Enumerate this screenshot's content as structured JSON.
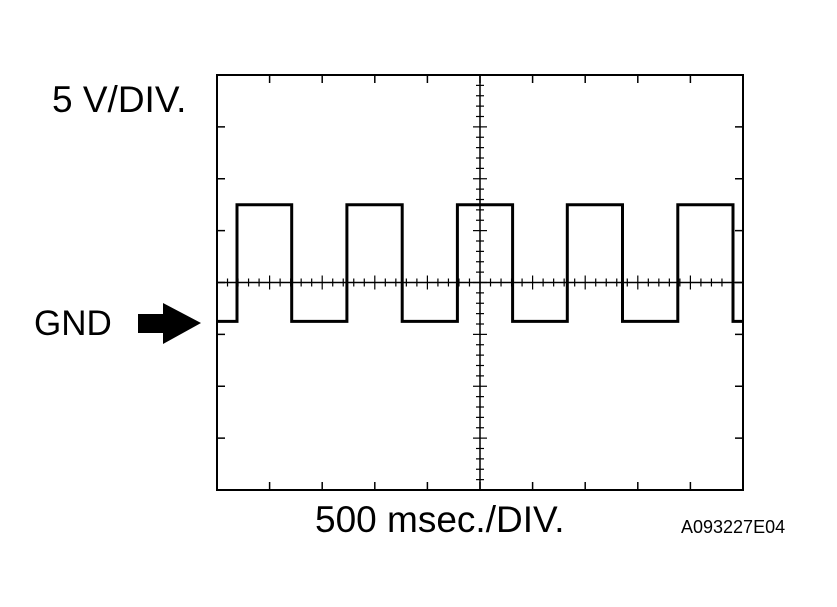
{
  "chart_data": {
    "type": "line",
    "y_scale_label": "5 V/DIV.",
    "x_scale_label": "500 msec./DIV.",
    "ground_label": "GND",
    "figure_code": "A093227E04",
    "grid": {
      "x_divisions": 10,
      "y_divisions": 8,
      "minor_ticks_per_division": 5,
      "style": "center-crosshair-with-edge-ticks"
    },
    "xlim": [
      0,
      10
    ],
    "ylim": [
      -4,
      4
    ],
    "ground_level": -0.75,
    "series": [
      {
        "points": [
          [
            0,
            -0.75
          ],
          [
            0.38,
            -0.75
          ],
          [
            0.38,
            1.5
          ],
          [
            1.42,
            1.5
          ],
          [
            1.42,
            -0.75
          ],
          [
            2.47,
            -0.75
          ],
          [
            2.47,
            1.5
          ],
          [
            3.52,
            1.5
          ],
          [
            3.52,
            -0.75
          ],
          [
            4.57,
            -0.75
          ],
          [
            4.57,
            1.5
          ],
          [
            5.62,
            1.5
          ],
          [
            5.62,
            -0.75
          ],
          [
            6.66,
            -0.75
          ],
          [
            6.66,
            1.5
          ],
          [
            7.71,
            1.5
          ],
          [
            7.71,
            -0.75
          ],
          [
            8.76,
            -0.75
          ],
          [
            8.76,
            1.5
          ],
          [
            9.81,
            1.5
          ],
          [
            9.81,
            -0.75
          ],
          [
            10,
            -0.75
          ]
        ]
      }
    ]
  }
}
